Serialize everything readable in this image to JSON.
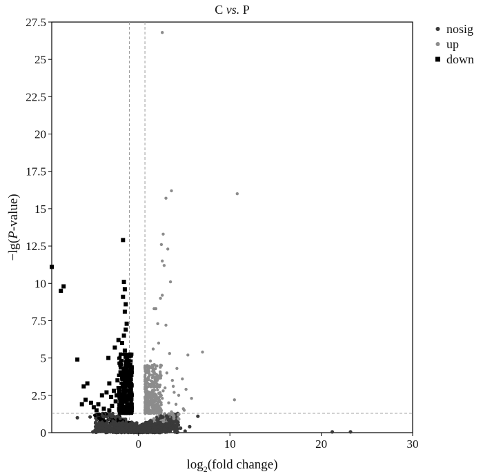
{
  "chart_data": {
    "type": "scatter",
    "title_main": "C",
    "title_italic": "vs.",
    "title_tail": "P",
    "xlabel_prefix": "log",
    "xlabel_sub": "2",
    "xlabel_suffix": "(fold change)",
    "ylabel_prefix": "−lg(",
    "ylabel_italic": "P",
    "ylabel_suffix": "-value)",
    "xlim": [
      -9.5,
      30
    ],
    "ylim": [
      0,
      27.5
    ],
    "xticks": [
      "0",
      "10",
      "20",
      "30"
    ],
    "xtick_values": [
      0,
      10,
      20,
      30
    ],
    "yticks": [
      "0",
      "2.5",
      "5",
      "7.5",
      "10",
      "12.5",
      "15",
      "17.5",
      "20",
      "22.5",
      "25",
      "27.5"
    ],
    "ytick_values": [
      0,
      2.5,
      5,
      7.5,
      10,
      12.5,
      15,
      17.5,
      20,
      22.5,
      25,
      27.5
    ],
    "thresholds": {
      "fc_low": -1,
      "fc_high": 0.7,
      "pval": 1.3
    },
    "legend_position": "top-right",
    "colors": {
      "nosig": "#3a3a3a",
      "up": "#8c8c8c",
      "down": "#000000",
      "threshold": "#9a9a9a"
    },
    "series": [
      {
        "name": "nosig",
        "marker": "circle",
        "points": [
          [
            6.5,
            1.1
          ],
          [
            -5.3,
            1.05
          ],
          [
            -6.7,
            1.0
          ],
          [
            5.6,
            0.4
          ],
          [
            -4.6,
            0.2
          ],
          [
            -3.2,
            0.1
          ],
          [
            -5.0,
            0.05
          ],
          [
            -2.3,
            0.3
          ],
          [
            2.2,
            0.4
          ],
          [
            -1.6,
            0.2
          ],
          [
            3.1,
            0.5
          ],
          [
            -2.8,
            0.6
          ],
          [
            1.3,
            0.8
          ],
          [
            4.0,
            0.15
          ],
          [
            -3.6,
            0.45
          ],
          [
            0.3,
            0.05
          ],
          [
            -0.5,
            0.1
          ],
          [
            2.8,
            0.25
          ],
          [
            -1.2,
            0.55
          ],
          [
            1.8,
            0.6
          ],
          [
            4.6,
            0.3
          ],
          [
            -4.0,
            0.7
          ],
          [
            3.5,
            0.9
          ],
          [
            -2.0,
            0.95
          ],
          [
            0.9,
            0.35
          ],
          [
            5.1,
            0.1
          ],
          [
            -0.2,
            0.65
          ],
          [
            2.4,
            1.0
          ],
          [
            -3.9,
            1.1
          ],
          [
            1.1,
            0.15
          ],
          [
            21.2,
            0.05
          ],
          [
            23.2,
            0.05
          ]
        ]
      },
      {
        "name": "up",
        "marker": "circle",
        "points": [
          [
            2.6,
            26.8
          ],
          [
            3.6,
            16.2
          ],
          [
            10.8,
            16.0
          ],
          [
            3.0,
            15.7
          ],
          [
            2.7,
            13.3
          ],
          [
            2.5,
            12.6
          ],
          [
            3.2,
            12.3
          ],
          [
            2.6,
            11.5
          ],
          [
            2.8,
            11.2
          ],
          [
            3.5,
            10.1
          ],
          [
            2.6,
            9.2
          ],
          [
            2.4,
            9.0
          ],
          [
            1.7,
            8.3
          ],
          [
            1.9,
            8.3
          ],
          [
            2.1,
            7.3
          ],
          [
            3.0,
            7.2
          ],
          [
            7.0,
            5.4
          ],
          [
            5.4,
            5.2
          ],
          [
            2.2,
            6.0
          ],
          [
            1.6,
            5.6
          ],
          [
            3.4,
            5.3
          ],
          [
            4.2,
            4.3
          ],
          [
            4.8,
            3.6
          ],
          [
            5.2,
            2.9
          ],
          [
            5.8,
            2.3
          ],
          [
            10.5,
            2.2
          ],
          [
            1.3,
            4.8
          ],
          [
            2.5,
            4.5
          ],
          [
            3.1,
            4.0
          ],
          [
            1.9,
            3.5
          ],
          [
            3.8,
            3.1
          ],
          [
            2.7,
            2.8
          ],
          [
            4.4,
            2.5
          ],
          [
            1.5,
            2.6
          ],
          [
            3.3,
            2.0
          ],
          [
            2.1,
            1.8
          ],
          [
            4.9,
            1.6
          ],
          [
            1.2,
            1.5
          ],
          [
            3.6,
            1.4
          ],
          [
            2.3,
            3.8
          ],
          [
            1.0,
            3.3
          ],
          [
            1.7,
            4.1
          ],
          [
            2.9,
            3.0
          ],
          [
            4.1,
            1.9
          ],
          [
            5.0,
            1.5
          ],
          [
            3.9,
            2.7
          ],
          [
            1.4,
            2.1
          ],
          [
            2.6,
            2.3
          ],
          [
            0.9,
            2.8
          ],
          [
            3.7,
            3.5
          ]
        ]
      },
      {
        "name": "down",
        "marker": "square",
        "points": [
          [
            -9.5,
            11.1
          ],
          [
            -8.2,
            9.8
          ],
          [
            -8.5,
            9.5
          ],
          [
            -1.7,
            12.9
          ],
          [
            -1.6,
            10.1
          ],
          [
            -1.5,
            9.6
          ],
          [
            -1.7,
            9.1
          ],
          [
            -1.4,
            8.6
          ],
          [
            -1.5,
            8.1
          ],
          [
            -1.3,
            7.3
          ],
          [
            -1.4,
            6.9
          ],
          [
            -1.6,
            6.5
          ],
          [
            -2.2,
            6.2
          ],
          [
            -1.8,
            6.0
          ],
          [
            -2.6,
            5.7
          ],
          [
            -1.5,
            5.5
          ],
          [
            -1.3,
            5.1
          ],
          [
            -6.7,
            4.9
          ],
          [
            -3.3,
            5.0
          ],
          [
            -2.0,
            4.6
          ],
          [
            -1.6,
            4.3
          ],
          [
            -1.9,
            4.0
          ],
          [
            -1.4,
            3.7
          ],
          [
            -2.3,
            3.5
          ],
          [
            -1.7,
            3.2
          ],
          [
            -2.1,
            2.9
          ],
          [
            -1.5,
            2.7
          ],
          [
            -3.2,
            3.3
          ],
          [
            -2.7,
            2.8
          ],
          [
            -2.4,
            2.5
          ],
          [
            -5.6,
            3.3
          ],
          [
            -6.0,
            3.1
          ],
          [
            -3.5,
            2.7
          ],
          [
            -4.0,
            2.5
          ],
          [
            -5.8,
            2.2
          ],
          [
            -5.2,
            2.0
          ],
          [
            -4.4,
            1.9
          ],
          [
            -6.2,
            1.9
          ],
          [
            -4.9,
            1.7
          ],
          [
            -3.8,
            1.6
          ],
          [
            -2.9,
            1.8
          ],
          [
            -1.8,
            1.9
          ],
          [
            -1.3,
            2.2
          ],
          [
            -2.5,
            2.1
          ],
          [
            -1.2,
            1.6
          ],
          [
            -3.2,
            1.5
          ],
          [
            -4.6,
            1.5
          ],
          [
            -2.0,
            1.5
          ],
          [
            -1.5,
            1.4
          ],
          [
            -3.0,
            2.4
          ],
          [
            -1.7,
            2.4
          ],
          [
            -2.2,
            3.0
          ]
        ]
      }
    ]
  }
}
